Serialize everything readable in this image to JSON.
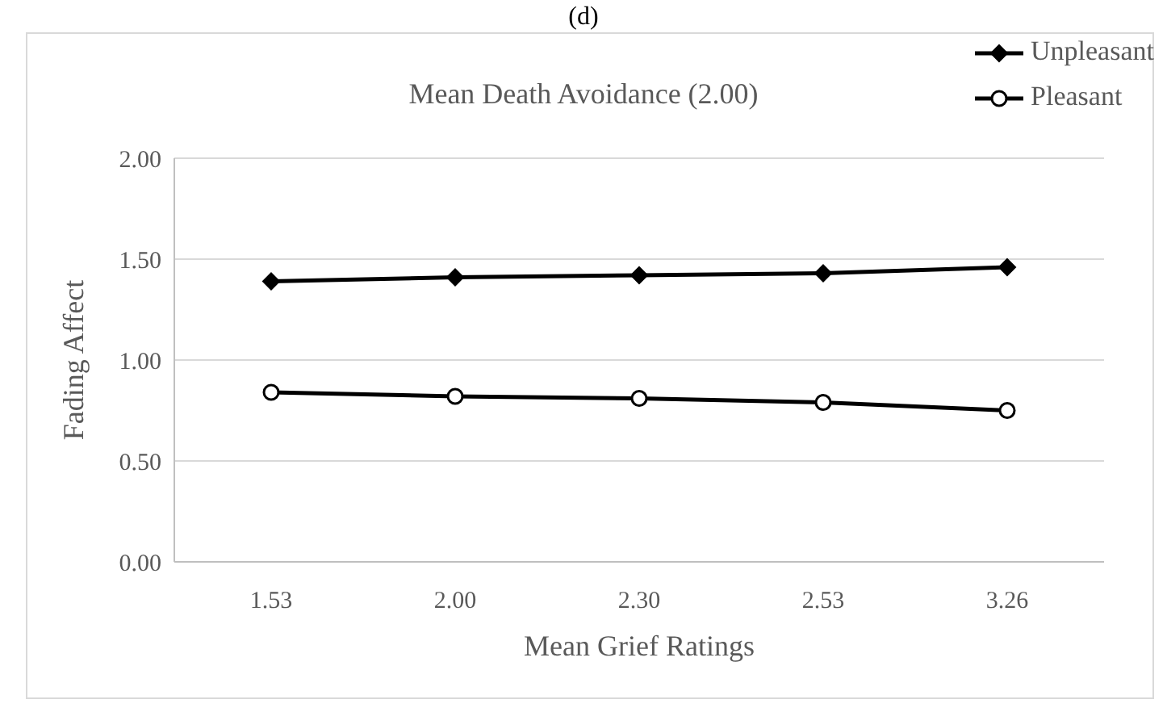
{
  "chart_data": {
    "type": "line",
    "title": "Mean Death Avoidance (2.00)",
    "annotations": [
      "(d)"
    ],
    "xlabel": "Mean Grief Ratings",
    "ylabel": "Fading Affect",
    "categories": [
      "1.53",
      "2.00",
      "2.30",
      "2.53",
      "3.26"
    ],
    "series": [
      {
        "name": "Unpleasant",
        "color": "#000000",
        "marker": "diamond",
        "values": [
          1.39,
          1.41,
          1.42,
          1.43,
          1.46
        ]
      },
      {
        "name": "Pleasant",
        "color": "#000000",
        "marker": "circle",
        "values": [
          0.84,
          0.82,
          0.81,
          0.79,
          0.75
        ]
      }
    ],
    "ylim": [
      0,
      2
    ],
    "yticks": [
      {
        "value": 0,
        "label": "0.00"
      },
      {
        "value": 0.5,
        "label": "0.50"
      },
      {
        "value": 1,
        "label": "1.00"
      },
      {
        "value": 1.5,
        "label": "1.50"
      },
      {
        "value": 2,
        "label": "2.00"
      }
    ],
    "grid": "y",
    "legend": "top right",
    "line_style": "solid"
  }
}
